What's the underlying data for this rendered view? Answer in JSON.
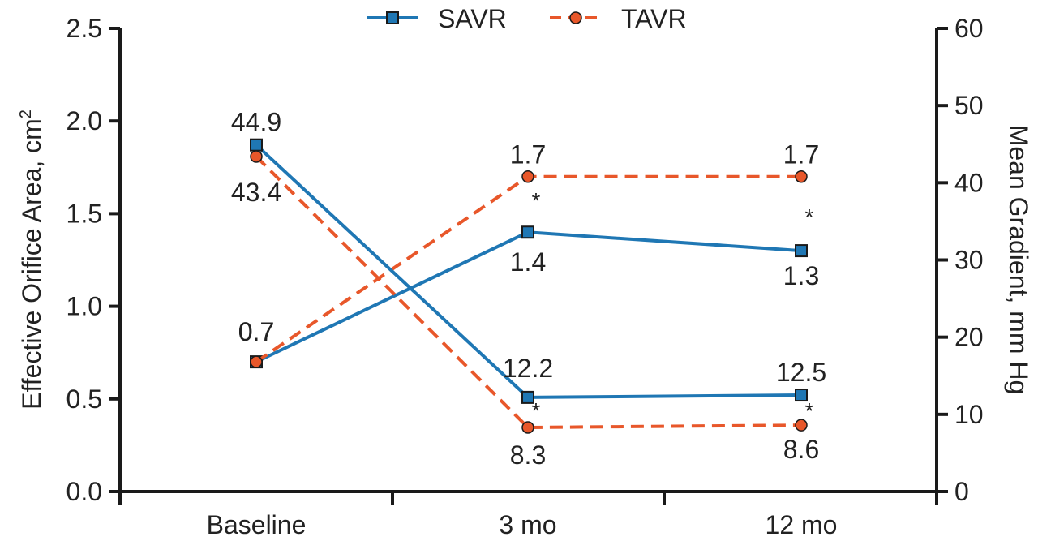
{
  "chart_data": {
    "type": "line",
    "categories": [
      "Baseline",
      "3 mo",
      "12 mo"
    ],
    "y_left": {
      "label": "Effective Orifice Area, cm",
      "superscript": "2",
      "range": [
        0,
        2.5
      ],
      "ticks": [
        "0.0",
        "0.5",
        "1.0",
        "1.5",
        "2.0",
        "2.5"
      ]
    },
    "y_right": {
      "label": "Mean Gradient, mm Hg",
      "range": [
        0,
        60
      ],
      "ticks": [
        "0",
        "10",
        "20",
        "30",
        "40",
        "50",
        "60"
      ]
    },
    "legend": {
      "placement": "top-center",
      "entries": [
        "SAVR",
        "TAVR"
      ]
    },
    "colors": {
      "SAVR": "#1f77b4",
      "TAVR": "#e8572a",
      "axis": "#1a1a1a"
    },
    "series": [
      {
        "name": "SAVR",
        "metric": "Effective Orifice Area",
        "axis": "left",
        "style": "solid",
        "marker": "square",
        "values": [
          0.7,
          1.4,
          1.3
        ],
        "labels": [
          "0.7",
          "1.4",
          "1.3"
        ]
      },
      {
        "name": "TAVR",
        "metric": "Effective Orifice Area",
        "axis": "left",
        "style": "dashed",
        "marker": "circle",
        "values": [
          0.7,
          1.7,
          1.7
        ],
        "labels": [
          "0.7",
          "1.7",
          "1.7"
        ]
      },
      {
        "name": "SAVR",
        "metric": "Mean Gradient",
        "axis": "right",
        "style": "solid",
        "marker": "square",
        "values": [
          44.9,
          12.2,
          12.5
        ],
        "labels": [
          "44.9",
          "12.2",
          "12.5"
        ]
      },
      {
        "name": "TAVR",
        "metric": "Mean Gradient",
        "axis": "right",
        "style": "dashed",
        "marker": "circle",
        "values": [
          43.4,
          8.3,
          8.6
        ],
        "labels": [
          "43.4",
          "8.3",
          "8.6"
        ]
      }
    ],
    "annotations": [
      {
        "text": "*",
        "category": "3 mo",
        "metric": "Effective Orifice Area"
      },
      {
        "text": "*",
        "category": "12 mo",
        "metric": "Effective Orifice Area"
      },
      {
        "text": "*",
        "category": "3 mo",
        "metric": "Mean Gradient"
      },
      {
        "text": "*",
        "category": "12 mo",
        "metric": "Mean Gradient"
      }
    ]
  }
}
